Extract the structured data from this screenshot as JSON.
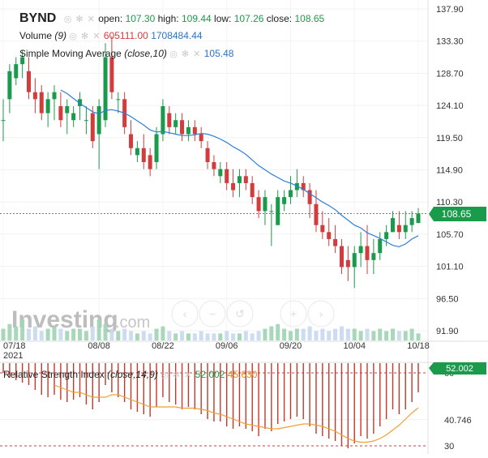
{
  "header": {
    "symbol": "BYND",
    "open_label": "open:",
    "open": "107.30",
    "high_label": "high:",
    "high": "109.44",
    "low_label": "low:",
    "low": "107.26",
    "close_label": "close:",
    "close": "108.65"
  },
  "volume_legend": {
    "label": "Volume",
    "param": "(9)",
    "value1": "605111.00",
    "value2": "1708484.44"
  },
  "sma_legend": {
    "label": "Simple Moving Average",
    "param": "(close,10)",
    "value": "105.48"
  },
  "rsi_legend": {
    "label": "Relative Strength Index",
    "param": "(close,14,9)",
    "value1": "52.002",
    "value2": "45.630"
  },
  "watermark": {
    "brand": "Investing",
    "suffix": ".com"
  },
  "price_tag": "108.65",
  "rsi_tag": "52.002",
  "colors": {
    "up": "#1a9b4b",
    "down": "#d23c3c",
    "sma": "#2f7fd6",
    "rsi_signal": "#f0a030",
    "tag_bg": "#1a9b4b"
  },
  "chart_data": {
    "type": "candlestick",
    "title": "BYND",
    "y_ticks": [
      "137.90",
      "133.30",
      "128.70",
      "124.10",
      "119.50",
      "114.90",
      "110.30",
      "105.70",
      "101.10",
      "96.50",
      "91.90"
    ],
    "y_tick_values": [
      137.9,
      133.3,
      128.7,
      124.1,
      119.5,
      114.9,
      110.3,
      105.7,
      101.1,
      96.5,
      91.9
    ],
    "ylim": [
      91.9,
      137.9
    ],
    "x_ticks": [
      {
        "label": "07/18",
        "sub": "2021",
        "index": 0
      },
      {
        "label": "08/08",
        "sub": "",
        "index": 15
      },
      {
        "label": "08/22",
        "sub": "",
        "index": 25
      },
      {
        "label": "09/06",
        "sub": "",
        "index": 35
      },
      {
        "label": "09/20",
        "sub": "",
        "index": 45
      },
      {
        "label": "10/04",
        "sub": "",
        "index": 55
      },
      {
        "label": "10/18",
        "sub": "",
        "index": 65
      }
    ],
    "candles": [
      [
        122,
        125,
        119,
        122
      ],
      [
        125,
        130,
        123,
        129
      ],
      [
        128,
        131,
        127,
        130
      ],
      [
        130,
        132,
        128,
        131
      ],
      [
        129,
        131,
        125,
        126
      ],
      [
        126,
        128,
        123,
        125
      ],
      [
        126,
        127,
        122,
        123
      ],
      [
        123,
        126,
        121,
        125
      ],
      [
        125,
        127,
        122,
        126
      ],
      [
        124,
        126,
        121,
        122
      ],
      [
        123,
        125,
        120,
        124
      ],
      [
        122,
        124,
        121,
        123
      ],
      [
        124,
        126,
        122,
        125
      ],
      [
        122,
        124,
        120,
        122
      ],
      [
        123,
        124,
        118,
        119
      ],
      [
        120,
        125,
        115,
        124
      ],
      [
        122,
        133,
        121,
        131
      ],
      [
        131,
        134,
        125,
        126
      ],
      [
        125,
        126,
        123,
        125
      ],
      [
        125,
        126,
        120,
        121
      ],
      [
        120,
        122,
        117,
        118
      ],
      [
        117,
        119,
        116,
        118
      ],
      [
        118,
        120,
        115,
        116
      ],
      [
        117,
        118,
        114,
        115
      ],
      [
        116,
        121,
        115,
        120
      ],
      [
        120,
        125,
        119,
        124
      ],
      [
        123,
        124,
        120,
        121
      ],
      [
        121,
        123,
        120,
        122
      ],
      [
        122,
        123,
        119,
        120
      ],
      [
        120,
        122,
        119,
        121
      ],
      [
        121,
        122,
        119,
        120
      ],
      [
        120,
        121,
        118,
        119
      ],
      [
        118,
        119,
        115,
        116
      ],
      [
        116,
        117,
        114,
        115
      ],
      [
        114,
        116,
        113,
        115
      ],
      [
        115,
        116,
        112,
        113
      ],
      [
        113,
        115,
        111,
        112
      ],
      [
        113,
        115,
        111,
        114
      ],
      [
        114,
        115,
        112,
        113
      ],
      [
        113,
        114,
        110,
        111
      ],
      [
        111,
        112,
        108,
        109
      ],
      [
        109,
        112,
        107,
        111
      ],
      [
        109,
        110,
        104,
        109
      ],
      [
        107,
        112,
        107,
        111
      ],
      [
        110,
        112,
        109,
        111
      ],
      [
        111,
        114,
        110,
        112
      ],
      [
        112,
        115,
        111,
        113
      ],
      [
        113,
        114,
        111,
        112
      ],
      [
        112,
        113,
        108,
        110
      ],
      [
        110,
        112,
        106,
        107
      ],
      [
        107,
        109,
        105,
        106
      ],
      [
        106,
        108,
        104,
        105
      ],
      [
        105,
        107,
        103,
        104
      ],
      [
        104,
        105,
        100,
        101
      ],
      [
        102,
        104,
        99,
        101
      ],
      [
        101,
        104,
        98,
        103
      ],
      [
        103,
        106,
        101,
        104
      ],
      [
        104,
        107,
        100,
        102
      ],
      [
        102,
        105,
        100,
        103
      ],
      [
        103,
        106,
        102,
        105
      ],
      [
        105,
        107,
        104,
        106
      ],
      [
        106,
        109,
        106,
        108
      ],
      [
        107,
        109,
        105,
        106
      ],
      [
        106,
        109,
        105,
        107
      ],
      [
        107,
        109,
        106,
        108
      ],
      [
        107.3,
        109.44,
        107.26,
        108.65
      ]
    ],
    "sma": [
      null,
      null,
      null,
      null,
      null,
      null,
      null,
      null,
      null,
      126.3,
      125.8,
      125.1,
      124.4,
      123.8,
      123.2,
      122.9,
      123.4,
      123.5,
      123.3,
      123.0,
      122.5,
      121.9,
      121.3,
      120.6,
      120.3,
      120.4,
      120.2,
      120.0,
      119.8,
      119.8,
      119.9,
      120.1,
      120.0,
      119.7,
      119.3,
      118.8,
      118.2,
      117.7,
      117.1,
      116.3,
      115.5,
      114.9,
      114.3,
      113.8,
      113.3,
      113.0,
      112.6,
      112.1,
      111.5,
      110.9,
      110.3,
      109.8,
      109.2,
      108.4,
      107.7,
      107.0,
      106.6,
      105.9,
      105.5,
      105.1,
      104.6,
      104.1,
      103.9,
      104.3,
      105.0,
      105.48
    ],
    "volume": [
      5,
      7,
      6,
      9,
      5,
      6,
      4,
      5,
      6,
      5,
      4,
      5,
      5,
      4,
      6,
      9,
      7,
      5,
      4,
      5,
      4,
      3,
      4,
      3,
      5,
      6,
      4,
      3,
      4,
      3,
      3,
      4,
      3,
      3,
      3,
      4,
      3,
      3,
      4,
      3,
      4,
      5,
      6,
      7,
      5,
      4,
      5,
      5,
      6,
      4,
      5,
      4,
      5,
      6,
      5,
      5,
      4,
      5,
      4,
      5,
      4,
      5,
      4,
      4,
      5,
      3
    ],
    "rsi_ticks": [
      "60",
      "40.746",
      "30"
    ],
    "rsi_tick_values": [
      60,
      40.746,
      30
    ],
    "rsi_ylim": [
      28,
      64
    ],
    "rsi": [
      60,
      58,
      57,
      56,
      55,
      53,
      51,
      50,
      51,
      49,
      48,
      49,
      50,
      47,
      45,
      48,
      55,
      52,
      50,
      48,
      45,
      44,
      43,
      42,
      46,
      50,
      48,
      47,
      45,
      46,
      45,
      43,
      41,
      40,
      40,
      38,
      37,
      38,
      37,
      36,
      34,
      37,
      36,
      39,
      40,
      41,
      42,
      41,
      38,
      35,
      34,
      33,
      32,
      30,
      29,
      31,
      34,
      33,
      35,
      38,
      41,
      45,
      43,
      45,
      48,
      52.002
    ],
    "rsi_signal": [
      null,
      null,
      null,
      null,
      null,
      null,
      null,
      null,
      55,
      54,
      53,
      52,
      52,
      51,
      50,
      50,
      50,
      51,
      51,
      50,
      49,
      48,
      47,
      46,
      46,
      46,
      46,
      46,
      45.5,
      45.5,
      45.5,
      45,
      44.5,
      43.5,
      43,
      42,
      41,
      40,
      39,
      38.5,
      38,
      37.5,
      37,
      37,
      37.5,
      38,
      38.5,
      39,
      39,
      38.5,
      38,
      37,
      36,
      34.5,
      33,
      32,
      31.5,
      31.5,
      32,
      33,
      34.5,
      36.5,
      38.5,
      41,
      43.5,
      45.63
    ]
  }
}
